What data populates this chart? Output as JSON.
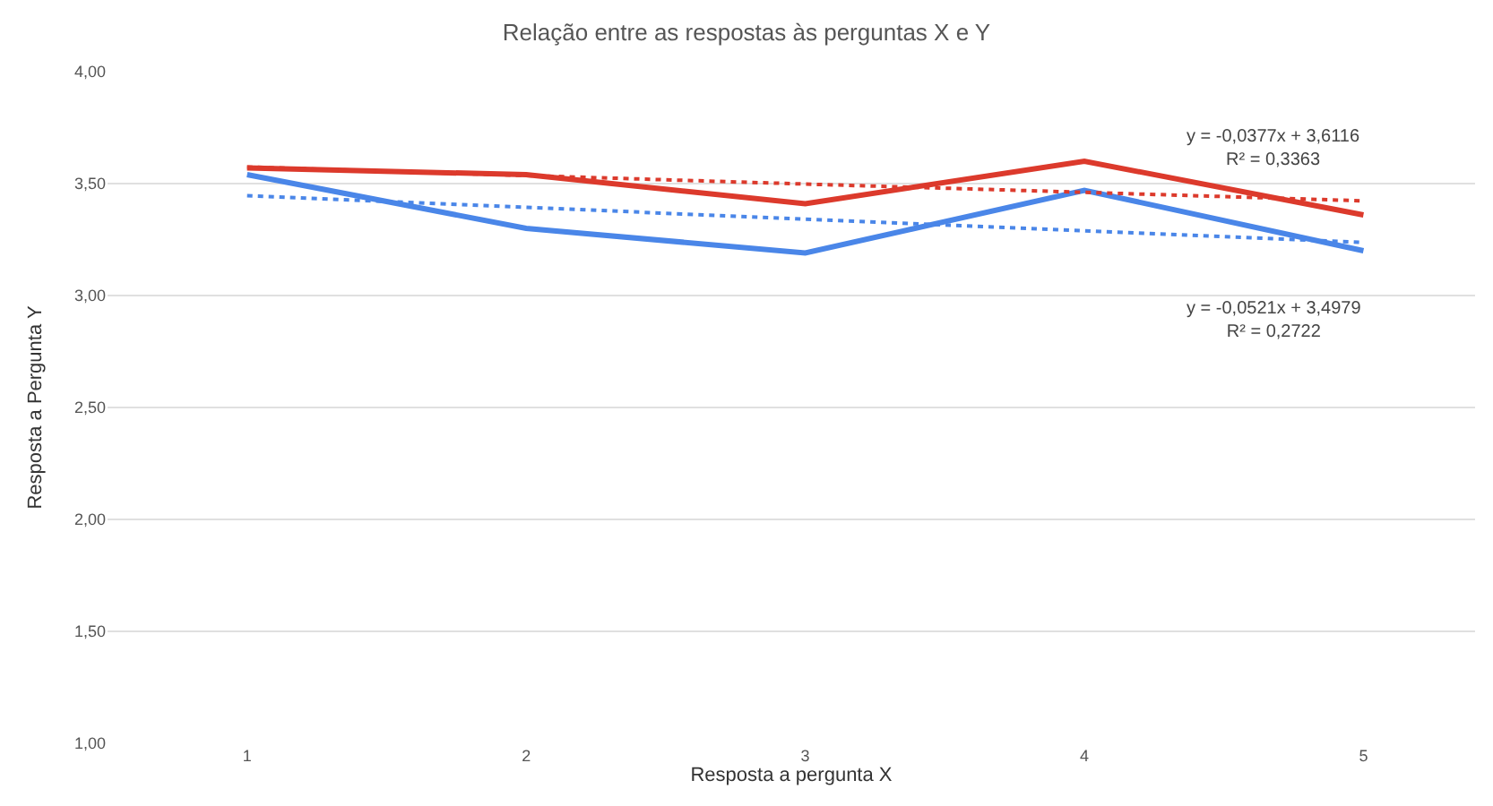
{
  "chart_data": {
    "type": "line",
    "title": "Relação entre as respostas às perguntas X e Y",
    "xlabel": "Resposta a pergunta X",
    "ylabel": "Resposta a Pergunta Y",
    "x": [
      1,
      2,
      3,
      4,
      5
    ],
    "series": [
      {
        "color": "#dc3a2c",
        "values": [
          3.57,
          3.54,
          3.41,
          3.6,
          3.36
        ],
        "line_style": "solid"
      },
      {
        "color": "#4a86e8",
        "values": [
          3.54,
          3.3,
          3.19,
          3.47,
          3.2
        ],
        "line_style": "solid"
      },
      {
        "color": "#dc3a2c",
        "values": [
          3.574,
          3.536,
          3.498,
          3.461,
          3.423
        ],
        "line_style": "dotted"
      },
      {
        "color": "#4a86e8",
        "values": [
          3.446,
          3.394,
          3.341,
          3.289,
          3.237
        ],
        "line_style": "dotted"
      }
    ],
    "annotations": [
      "y = -0,0377x + 3,6116\nR² = 0,3363",
      "y = -0,0521x + 3,4979\nR² = 0,2722"
    ],
    "xlim": [
      0.5,
      5.4
    ],
    "xticks": [
      1,
      2,
      3,
      4,
      5
    ],
    "ylim": [
      1.0,
      4.0
    ],
    "yticks": [
      {
        "value": 1.0,
        "label": "1,00"
      },
      {
        "value": 1.5,
        "label": "1,50"
      },
      {
        "value": 2.0,
        "label": "2,00"
      },
      {
        "value": 2.5,
        "label": "2,50"
      },
      {
        "value": 3.0,
        "label": "3,00"
      },
      {
        "value": 3.5,
        "label": "3,50"
      },
      {
        "value": 4.0,
        "label": "4,00"
      }
    ],
    "grid": "y",
    "marker": "none"
  }
}
